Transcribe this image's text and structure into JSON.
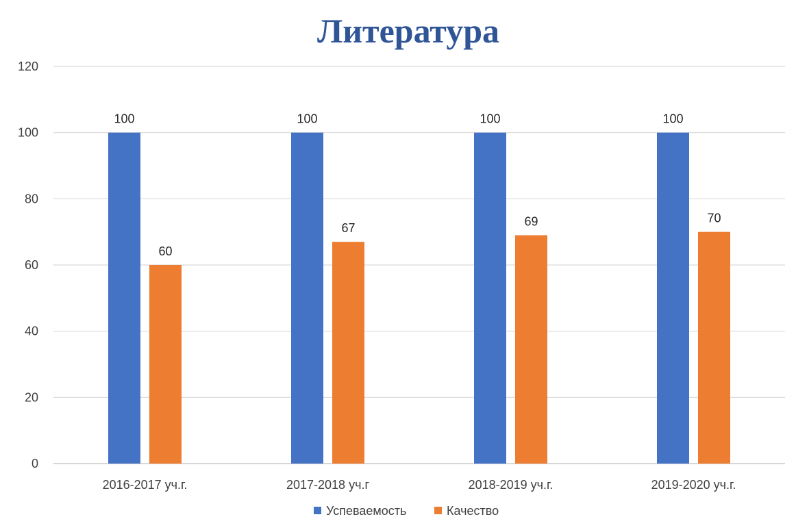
{
  "chart_data": {
    "type": "bar",
    "title": "Литература",
    "categories": [
      "2016-2017 уч.г.",
      "2017-2018 уч.г",
      "2018-2019 уч.г.",
      "2019-2020 уч.г."
    ],
    "series": [
      {
        "name": "Успеваемость",
        "values": [
          100,
          100,
          100,
          100
        ],
        "color": "#4472c4"
      },
      {
        "name": "Качество",
        "values": [
          60,
          67,
          69,
          70
        ],
        "color": "#ed7d31"
      }
    ],
    "ylim": [
      0,
      120
    ],
    "yticks": [
      0,
      20,
      40,
      60,
      80,
      100,
      120
    ],
    "grid": true,
    "legend": "bottom",
    "data_labels": true
  }
}
